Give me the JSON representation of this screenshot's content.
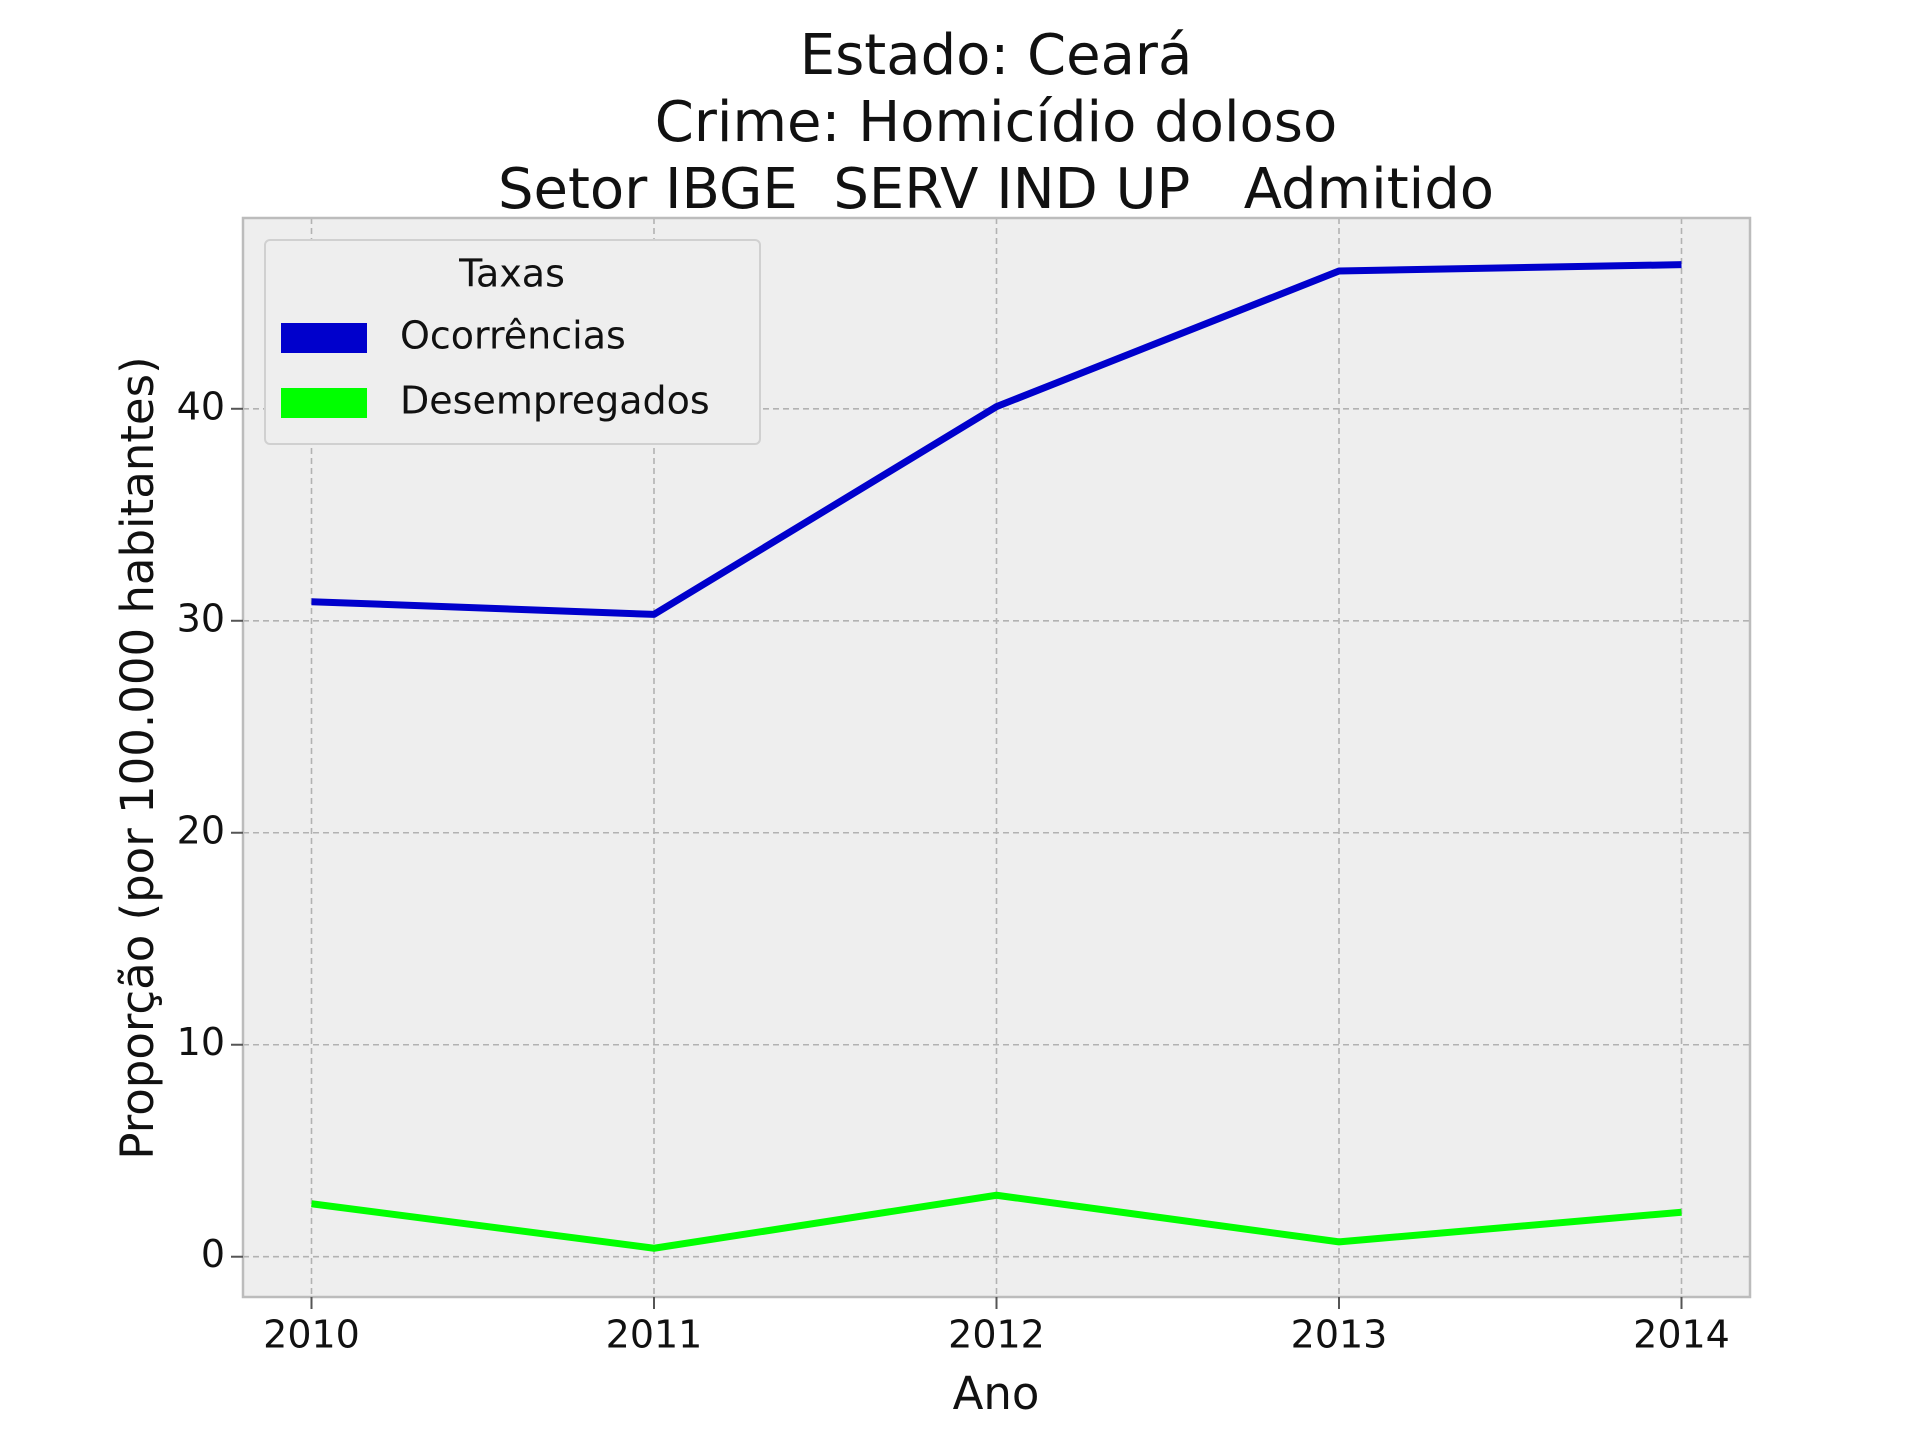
{
  "chart_data": {
    "type": "line",
    "title_lines": [
      "Estado: Ceará",
      "Crime: Homicídio doloso",
      "Setor IBGE  SERV IND UP   Admitido"
    ],
    "xlabel": "Ano",
    "ylabel": "Proporção (por 100.000 habitantes)",
    "x": [
      2010,
      2011,
      2012,
      2013,
      2014
    ],
    "x_tick_labels": [
      "2010",
      "2011",
      "2012",
      "2013",
      "2014"
    ],
    "y_ticks": [
      0,
      10,
      20,
      30,
      40
    ],
    "y_tick_labels": [
      "0",
      "10",
      "20",
      "30",
      "40"
    ],
    "xlim": [
      2009.8,
      2014.2
    ],
    "ylim": [
      -1.9,
      49
    ],
    "grid": true,
    "legend": {
      "title": "Taxas",
      "placement": "upper-left"
    },
    "series": [
      {
        "name": "Ocorrências",
        "color": "#0000cc",
        "values": [
          30.9,
          30.3,
          40.1,
          46.5,
          46.8
        ]
      },
      {
        "name": "Desempregados",
        "color": "#00ff00",
        "values": [
          2.5,
          0.4,
          2.9,
          0.7,
          2.1
        ]
      }
    ]
  }
}
